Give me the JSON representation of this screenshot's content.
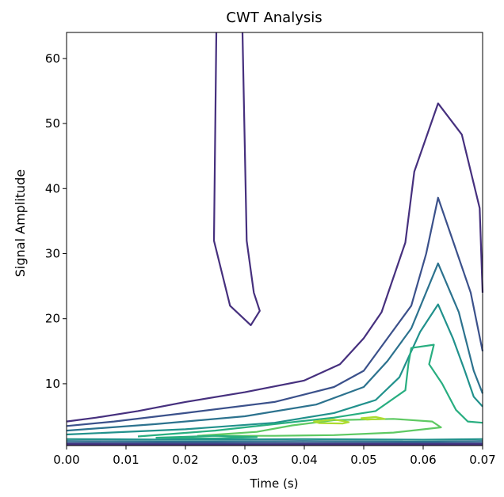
{
  "chart_data": {
    "type": "contour",
    "title": "CWT Analysis",
    "xlabel": "Time (s)",
    "ylabel": "Signal Amplitude",
    "xlim": [
      0.0,
      0.07
    ],
    "ylim": [
      0.5,
      64
    ],
    "grid": false,
    "legend": "none",
    "x_ticks": [
      0.0,
      0.01,
      0.02,
      0.03,
      0.04,
      0.05,
      0.06,
      0.07
    ],
    "x_tick_labels": [
      "0.00",
      "0.01",
      "0.02",
      "0.03",
      "0.04",
      "0.05",
      "0.06",
      "0.07"
    ],
    "y_ticks": [
      10,
      20,
      30,
      40,
      50,
      60
    ],
    "y_tick_labels": [
      "10",
      "20",
      "30",
      "40",
      "50",
      "60"
    ],
    "contours": [
      {
        "color": "#46307e",
        "points": [
          [
            0.0,
            4.2
          ],
          [
            0.005,
            4.8
          ],
          [
            0.012,
            5.8
          ],
          [
            0.02,
            7.2
          ],
          [
            0.03,
            8.7
          ],
          [
            0.04,
            10.5
          ],
          [
            0.046,
            13
          ],
          [
            0.05,
            17
          ],
          [
            0.053,
            21
          ],
          [
            0.057,
            31.7
          ],
          [
            0.0585,
            42.6
          ],
          [
            0.0625,
            53.1
          ],
          [
            0.0665,
            48.3
          ],
          [
            0.0695,
            37
          ],
          [
            0.07,
            24
          ]
        ]
      },
      {
        "color": "#46307e",
        "points": [
          [
            0.0252,
            64
          ],
          [
            0.0248,
            32
          ],
          [
            0.0275,
            22
          ],
          [
            0.031,
            19
          ],
          [
            0.0325,
            21.2
          ],
          [
            0.0315,
            24
          ],
          [
            0.0303,
            32
          ],
          [
            0.0296,
            64
          ]
        ]
      },
      {
        "color": "#3b518b",
        "points": [
          [
            0.0,
            3.5
          ],
          [
            0.008,
            4.2
          ],
          [
            0.02,
            5.5
          ],
          [
            0.035,
            7.2
          ],
          [
            0.045,
            9.5
          ],
          [
            0.05,
            12
          ],
          [
            0.054,
            17
          ],
          [
            0.058,
            22
          ],
          [
            0.0605,
            30
          ],
          [
            0.0625,
            38.6
          ],
          [
            0.065,
            32
          ],
          [
            0.068,
            24
          ],
          [
            0.07,
            15
          ]
        ]
      },
      {
        "color": "#2c728e",
        "points": [
          [
            0.0,
            2.8
          ],
          [
            0.015,
            3.8
          ],
          [
            0.03,
            5.0
          ],
          [
            0.042,
            6.8
          ],
          [
            0.05,
            9.5
          ],
          [
            0.054,
            13.5
          ],
          [
            0.058,
            18.5
          ],
          [
            0.0625,
            28.5
          ],
          [
            0.066,
            21
          ],
          [
            0.0685,
            12
          ],
          [
            0.07,
            8.5
          ]
        ]
      },
      {
        "color": "#21918c",
        "points": [
          [
            0.0,
            2.2
          ],
          [
            0.02,
            3.0
          ],
          [
            0.035,
            4.0
          ],
          [
            0.045,
            5.5
          ],
          [
            0.052,
            7.5
          ],
          [
            0.056,
            11
          ],
          [
            0.0595,
            18
          ],
          [
            0.0625,
            22.2
          ],
          [
            0.065,
            17
          ],
          [
            0.067,
            12
          ],
          [
            0.0685,
            8
          ],
          [
            0.07,
            6.5
          ]
        ]
      },
      {
        "color": "#28ae80",
        "points": [
          [
            0.012,
            1.9
          ],
          [
            0.025,
            2.8
          ],
          [
            0.035,
            3.8
          ],
          [
            0.045,
            4.8
          ],
          [
            0.052,
            5.8
          ],
          [
            0.057,
            9
          ],
          [
            0.0575,
            13
          ],
          [
            0.058,
            15.5
          ],
          [
            0.0618,
            16
          ],
          [
            0.061,
            13
          ],
          [
            0.0632,
            10
          ],
          [
            0.0655,
            6
          ],
          [
            0.0675,
            4.2
          ],
          [
            0.07,
            4.0
          ]
        ]
      },
      {
        "color": "#5ec962",
        "points": [
          [
            0.022,
            2.0
          ],
          [
            0.032,
            2.6
          ],
          [
            0.038,
            3.6
          ],
          [
            0.045,
            4.4
          ],
          [
            0.055,
            4.6
          ],
          [
            0.0615,
            4.2
          ],
          [
            0.063,
            3.3
          ],
          [
            0.055,
            2.5
          ],
          [
            0.045,
            2.1
          ],
          [
            0.035,
            2.0
          ],
          [
            0.022,
            2.0
          ]
        ]
      },
      {
        "color": "#addc30",
        "points": [
          [
            0.0415,
            4.2
          ],
          [
            0.045,
            4.5
          ],
          [
            0.0475,
            4.1
          ],
          [
            0.0465,
            3.9
          ],
          [
            0.0425,
            3.95
          ],
          [
            0.0415,
            4.2
          ]
        ]
      },
      {
        "color": "#addc30",
        "points": [
          [
            0.0495,
            4.7
          ],
          [
            0.052,
            4.9
          ],
          [
            0.0535,
            4.6
          ],
          [
            0.0505,
            4.5
          ],
          [
            0.0495,
            4.7
          ]
        ]
      },
      {
        "color": "#28ae80",
        "points": [
          [
            0.015,
            1.7
          ],
          [
            0.025,
            1.6
          ],
          [
            0.032,
            1.8
          ],
          [
            0.025,
            2.0
          ],
          [
            0.015,
            1.7
          ]
        ]
      },
      {
        "color": "#21918c",
        "points": [
          [
            0.0,
            1.5
          ],
          [
            0.02,
            1.4
          ],
          [
            0.04,
            1.5
          ],
          [
            0.06,
            1.4
          ],
          [
            0.07,
            1.5
          ]
        ]
      },
      {
        "color": "#2c728e",
        "points": [
          [
            0.0,
            1.2
          ],
          [
            0.02,
            1.1
          ],
          [
            0.04,
            1.2
          ],
          [
            0.06,
            1.1
          ],
          [
            0.07,
            1.2
          ]
        ]
      },
      {
        "color": "#3b518b",
        "points": [
          [
            0.0,
            0.9
          ],
          [
            0.02,
            0.85
          ],
          [
            0.04,
            0.9
          ],
          [
            0.06,
            0.85
          ],
          [
            0.07,
            0.9
          ]
        ]
      },
      {
        "color": "#46307e",
        "points": [
          [
            0.0,
            0.7
          ],
          [
            0.03,
            0.65
          ],
          [
            0.05,
            0.7
          ],
          [
            0.07,
            0.7
          ]
        ]
      }
    ]
  }
}
